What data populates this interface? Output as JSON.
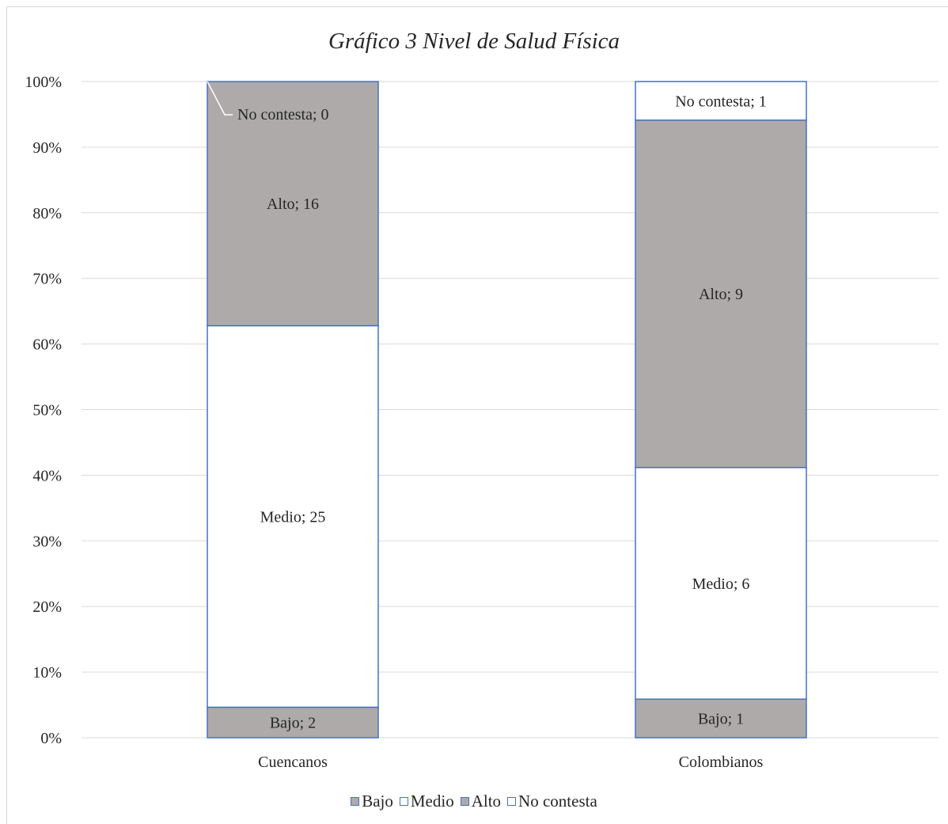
{
  "chart_data": {
    "type": "bar",
    "stacked": true,
    "percent_stacked": true,
    "title": "Gráfico 3 Nivel de Salud Física",
    "categories": [
      "Cuencanos",
      "Colombianos"
    ],
    "series": [
      {
        "name": "Bajo",
        "values": [
          2,
          1
        ],
        "color": "#aeaaaa",
        "edge": "#4472c4"
      },
      {
        "name": "Medio",
        "values": [
          25,
          6
        ],
        "color": "#ffffff",
        "edge": "#4472c4"
      },
      {
        "name": "Alto",
        "values": [
          16,
          9
        ],
        "color": "#aeaaaa",
        "edge": "#4472c4"
      },
      {
        "name": "No contesta",
        "values": [
          0,
          1
        ],
        "color": "#ffffff",
        "edge": "#4472c4"
      }
    ],
    "data_labels": [
      [
        "Bajo; 2",
        "Medio; 25",
        "Alto; 16",
        "No contesta; 0"
      ],
      [
        "Bajo; 1",
        "Medio; 6",
        "Alto; 9",
        "No contesta; 1"
      ]
    ],
    "ylim": [
      0,
      100
    ],
    "y_ticks": [
      "0%",
      "10%",
      "20%",
      "30%",
      "40%",
      "50%",
      "60%",
      "70%",
      "80%",
      "90%",
      "100%"
    ],
    "grid": true,
    "legend": "bottom",
    "gridline_color": "#d9d9d9"
  }
}
